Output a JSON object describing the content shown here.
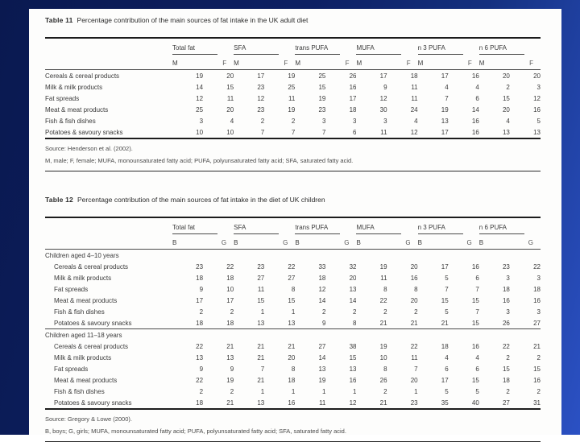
{
  "colors": {
    "background_dark": "#0a1950",
    "background_light": "#2b51c4",
    "page": "#fdfdfc",
    "text": "#333333"
  },
  "table11": {
    "label": "Table 11",
    "title": "Percentage contribution of the main sources of fat intake in the UK adult diet",
    "group_headers": [
      "Total fat",
      "SFA",
      "trans PUFA",
      "MUFA",
      "n 3 PUFA",
      "n 6 PUFA"
    ],
    "sub_headers": [
      "M",
      "F"
    ],
    "sections": [
      {
        "rows": [
          {
            "label": "Cereals & cereal products",
            "values": [
              19,
              20,
              17,
              19,
              25,
              26,
              17,
              18,
              17,
              16,
              20,
              20
            ]
          },
          {
            "label": "Milk & milk products",
            "values": [
              14,
              15,
              23,
              25,
              15,
              16,
              9,
              11,
              4,
              4,
              2,
              3
            ]
          },
          {
            "label": "Fat spreads",
            "values": [
              12,
              11,
              12,
              11,
              19,
              17,
              12,
              11,
              7,
              6,
              15,
              12
            ]
          },
          {
            "label": "Meat & meat products",
            "values": [
              25,
              20,
              23,
              19,
              23,
              18,
              30,
              24,
              19,
              14,
              20,
              16
            ]
          },
          {
            "label": "Fish & fish dishes",
            "values": [
              3,
              4,
              2,
              2,
              3,
              3,
              3,
              4,
              13,
              16,
              4,
              5
            ]
          },
          {
            "label": "Potatoes & savoury snacks",
            "values": [
              10,
              10,
              7,
              7,
              7,
              6,
              11,
              12,
              17,
              16,
              13,
              13
            ]
          }
        ]
      }
    ],
    "source": "Source: Henderson et al. (2002).",
    "footnote": "M, male; F, female; MUFA, monounsaturated fatty acid; PUFA, polyunsaturated fatty acid; SFA, saturated fatty acid."
  },
  "table12": {
    "label": "Table 12",
    "title": "Percentage contribution of the main sources of fat intake in the diet of UK children",
    "group_headers": [
      "Total fat",
      "SFA",
      "trans PUFA",
      "MUFA",
      "n 3 PUFA",
      "n 6 PUFA"
    ],
    "sub_headers": [
      "B",
      "G"
    ],
    "sections": [
      {
        "heading": "Children aged 4–10 years",
        "rows": [
          {
            "label": "Cereals & cereal products",
            "values": [
              23,
              22,
              23,
              22,
              33,
              32,
              19,
              20,
              17,
              16,
              23,
              22
            ]
          },
          {
            "label": "Milk & milk products",
            "values": [
              18,
              18,
              27,
              27,
              18,
              20,
              11,
              16,
              5,
              6,
              3,
              3
            ]
          },
          {
            "label": "Fat spreads",
            "values": [
              9,
              10,
              11,
              8,
              12,
              13,
              8,
              8,
              7,
              7,
              18,
              18
            ]
          },
          {
            "label": "Meat & meat products",
            "values": [
              17,
              17,
              15,
              15,
              14,
              14,
              22,
              20,
              15,
              15,
              16,
              16
            ]
          },
          {
            "label": "Fish & fish dishes",
            "values": [
              2,
              2,
              1,
              1,
              2,
              2,
              2,
              2,
              5,
              7,
              3,
              3
            ]
          },
          {
            "label": "Potatoes & savoury snacks",
            "values": [
              18,
              18,
              13,
              13,
              9,
              8,
              21,
              21,
              21,
              15,
              26,
              27
            ]
          }
        ]
      },
      {
        "heading": "Children aged 11–18 years",
        "rows": [
          {
            "label": "Cereals & cereal products",
            "values": [
              22,
              21,
              21,
              21,
              27,
              38,
              19,
              22,
              18,
              16,
              22,
              21
            ]
          },
          {
            "label": "Milk & milk products",
            "values": [
              13,
              13,
              21,
              20,
              14,
              15,
              10,
              11,
              4,
              4,
              2,
              2
            ]
          },
          {
            "label": "Fat spreads",
            "values": [
              9,
              9,
              7,
              8,
              13,
              13,
              8,
              7,
              6,
              6,
              15,
              15
            ]
          },
          {
            "label": "Meat & meat products",
            "values": [
              22,
              19,
              21,
              18,
              19,
              16,
              26,
              20,
              17,
              15,
              18,
              16
            ]
          },
          {
            "label": "Fish & fish dishes",
            "values": [
              2,
              2,
              1,
              1,
              1,
              1,
              2,
              1,
              5,
              5,
              2,
              2
            ]
          },
          {
            "label": "Potatoes & savoury snacks",
            "values": [
              18,
              21,
              13,
              16,
              11,
              12,
              21,
              23,
              35,
              40,
              27,
              31
            ]
          }
        ]
      }
    ],
    "source": "Source: Gregory & Lowe (2000).",
    "footnote": "B, boys; G, girls; MUFA, monounsaturated fatty acid; PUFA, polyunsaturated fatty acid; SFA, saturated fatty acid."
  }
}
